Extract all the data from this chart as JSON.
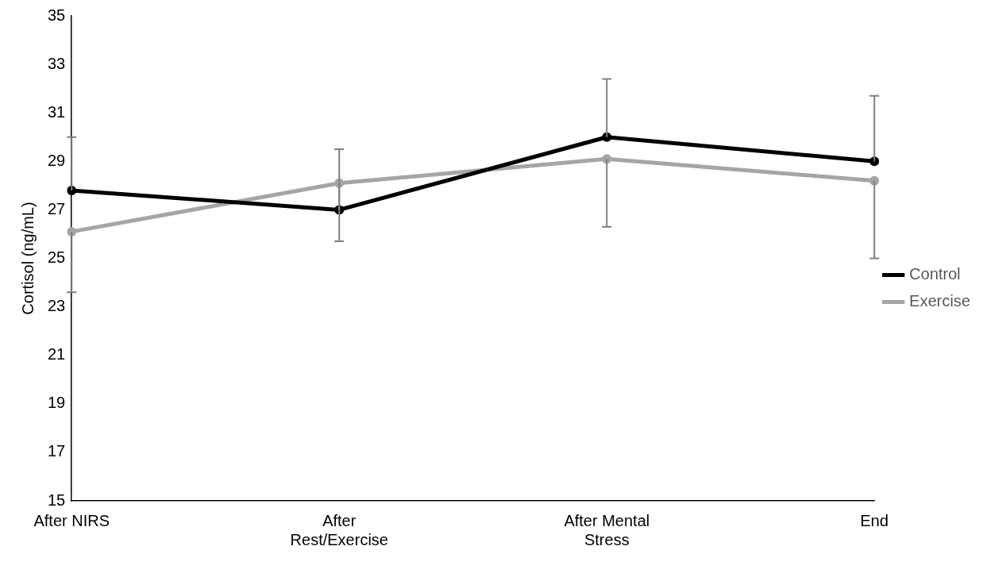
{
  "chart_data": {
    "type": "line",
    "ylabel": "Cortisol (ng/mL)",
    "categories": [
      "After NIRS",
      "After Rest/Exercise",
      "After Mental Stress",
      "End"
    ],
    "series": [
      {
        "name": "Control",
        "color": "#000000",
        "values": [
          27.8,
          27.0,
          30.0,
          29.0
        ],
        "errors": [
          [
            27.8,
            30.0
          ],
          [
            27.0,
            29.5
          ],
          [
            30.0,
            32.4
          ],
          [
            29.0,
            31.7
          ]
        ]
      },
      {
        "name": "Exercise",
        "color": "#a5a5a5",
        "values": [
          26.1,
          28.1,
          29.1,
          28.2
        ],
        "errors": [
          [
            23.6,
            26.1
          ],
          [
            25.7,
            28.1
          ],
          [
            26.3,
            29.1
          ],
          [
            25.0,
            28.2
          ]
        ]
      }
    ],
    "ylim": [
      15,
      35
    ],
    "yticks": [
      15,
      17,
      19,
      21,
      23,
      25,
      27,
      29,
      31,
      33,
      35
    ],
    "grid": false,
    "legend": "right",
    "marker": "circle",
    "line_style": "solid"
  }
}
